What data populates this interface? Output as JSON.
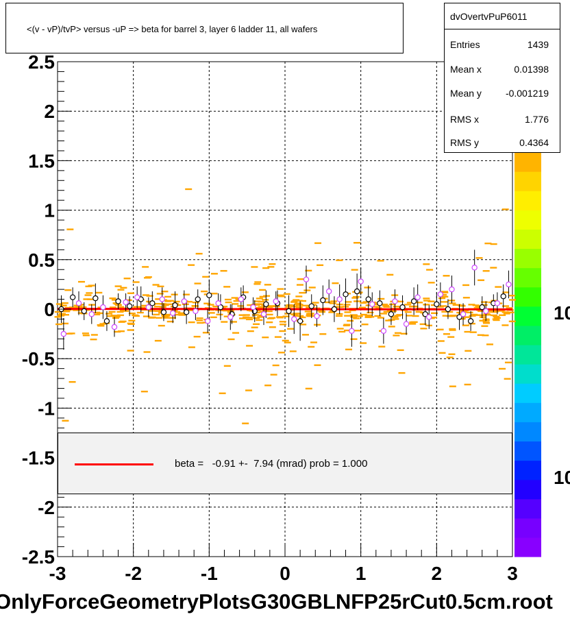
{
  "title": "<(v - vP)/tvP> versus  -uP => beta for barrel 3, layer 6 ladder 11, all wafers",
  "stats": {
    "name": "dvOvertvPuP6011",
    "rows": [
      {
        "label": "Entries",
        "value": "1439"
      },
      {
        "label": "Mean x",
        "value": "0.01398"
      },
      {
        "label": "Mean y",
        "value": "-0.001219"
      },
      {
        "label": "RMS x",
        "value": "1.776"
      },
      {
        "label": "RMS y",
        "value": "0.4364"
      }
    ]
  },
  "fit_legend": {
    "text": "beta =   -0.91 +-  7.94 (mrad) prob = 1.000",
    "line_color": "#ff0000"
  },
  "bottom_title": "OnlyForceGeometryPlotsG30GBLNFP25rCut0.5cm.root",
  "palette_labels": [
    "10",
    "10"
  ],
  "chart_data": {
    "type": "scatter",
    "title": "<(v - vP)/tvP> versus  -uP => beta for barrel 3, layer 6 ladder 11, all wafers",
    "xlim": [
      -3,
      3
    ],
    "ylim": [
      -2.5,
      2.5
    ],
    "x_ticks": [
      "-3",
      "-2",
      "-1",
      "0",
      "1",
      "2",
      "3"
    ],
    "y_ticks": [
      "-2.5",
      "-2",
      "-1.5",
      "-1",
      "-0.5",
      "0",
      "0.5",
      "1",
      "1.5",
      "2",
      "2.5"
    ],
    "grid": true,
    "fit": {
      "name": "beta",
      "slope_mrad": -0.91,
      "error_mrad": 7.94,
      "prob": 1.0,
      "color": "#ff0000"
    },
    "colors": {
      "histogram_bins": "#ffa500",
      "black_markers": "#000000",
      "magenta_markers": "#cc44ff"
    },
    "profile_black": [
      {
        "x": -2.95,
        "y": 0.0,
        "e": 0.14
      },
      {
        "x": -2.8,
        "y": 0.12,
        "e": 0.1
      },
      {
        "x": -2.65,
        "y": -0.02,
        "e": 0.09
      },
      {
        "x": -2.5,
        "y": 0.11,
        "e": 0.15
      },
      {
        "x": -2.35,
        "y": -0.12,
        "e": 0.1
      },
      {
        "x": -2.2,
        "y": 0.08,
        "e": 0.08
      },
      {
        "x": -2.05,
        "y": 0.03,
        "e": 0.1
      },
      {
        "x": -1.9,
        "y": 0.1,
        "e": 0.13
      },
      {
        "x": -1.75,
        "y": 0.06,
        "e": 0.12
      },
      {
        "x": -1.6,
        "y": -0.03,
        "e": 0.09
      },
      {
        "x": -1.45,
        "y": 0.04,
        "e": 0.14
      },
      {
        "x": -1.3,
        "y": -0.03,
        "e": 0.12
      },
      {
        "x": -1.15,
        "y": 0.1,
        "e": 0.1
      },
      {
        "x": -1.0,
        "y": 0.14,
        "e": 0.16
      },
      {
        "x": -0.85,
        "y": 0.02,
        "e": 0.13
      },
      {
        "x": -0.7,
        "y": -0.05,
        "e": 0.1
      },
      {
        "x": -0.55,
        "y": 0.12,
        "e": 0.12
      },
      {
        "x": -0.4,
        "y": -0.02,
        "e": 0.11
      },
      {
        "x": -0.25,
        "y": 0.05,
        "e": 0.14
      },
      {
        "x": -0.1,
        "y": 0.06,
        "e": 0.13
      },
      {
        "x": 0.05,
        "y": -0.02,
        "e": 0.16
      },
      {
        "x": 0.2,
        "y": -0.12,
        "e": 0.2
      },
      {
        "x": 0.35,
        "y": 0.03,
        "e": 0.12
      },
      {
        "x": 0.5,
        "y": 0.09,
        "e": 0.15
      },
      {
        "x": 0.65,
        "y": 0.0,
        "e": 0.13
      },
      {
        "x": 0.8,
        "y": 0.15,
        "e": 0.16
      },
      {
        "x": 0.95,
        "y": 0.18,
        "e": 0.18
      },
      {
        "x": 1.1,
        "y": 0.1,
        "e": 0.14
      },
      {
        "x": 1.25,
        "y": 0.06,
        "e": 0.13
      },
      {
        "x": 1.4,
        "y": -0.05,
        "e": 0.11
      },
      {
        "x": 1.55,
        "y": 0.02,
        "e": 0.12
      },
      {
        "x": 1.7,
        "y": 0.08,
        "e": 0.14
      },
      {
        "x": 1.85,
        "y": -0.05,
        "e": 0.11
      },
      {
        "x": 2.0,
        "y": 0.05,
        "e": 0.12
      },
      {
        "x": 2.15,
        "y": 0.0,
        "e": 0.1
      },
      {
        "x": 2.3,
        "y": -0.08,
        "e": 0.13
      },
      {
        "x": 2.45,
        "y": -0.12,
        "e": 0.1
      },
      {
        "x": 2.6,
        "y": 0.02,
        "e": 0.11
      },
      {
        "x": 2.75,
        "y": 0.06,
        "e": 0.09
      },
      {
        "x": 2.88,
        "y": 0.13,
        "e": 0.12
      }
    ],
    "profile_magenta": [
      {
        "x": -2.92,
        "y": -0.25,
        "e": 0.16
      },
      {
        "x": -2.72,
        "y": 0.06,
        "e": 0.12
      },
      {
        "x": -2.55,
        "y": -0.05,
        "e": 0.1
      },
      {
        "x": -2.4,
        "y": 0.02,
        "e": 0.12
      },
      {
        "x": -2.25,
        "y": -0.18,
        "e": 0.1
      },
      {
        "x": -2.1,
        "y": 0.07,
        "e": 0.09
      },
      {
        "x": -1.95,
        "y": 0.12,
        "e": 0.11
      },
      {
        "x": -1.8,
        "y": 0.02,
        "e": 0.1
      },
      {
        "x": -1.62,
        "y": 0.1,
        "e": 0.12
      },
      {
        "x": -1.48,
        "y": -0.04,
        "e": 0.1
      },
      {
        "x": -1.33,
        "y": 0.08,
        "e": 0.11
      },
      {
        "x": -1.18,
        "y": -0.02,
        "e": 0.09
      },
      {
        "x": -1.02,
        "y": -0.12,
        "e": 0.12
      },
      {
        "x": -0.88,
        "y": 0.06,
        "e": 0.1
      },
      {
        "x": -0.72,
        "y": -0.08,
        "e": 0.13
      },
      {
        "x": -0.58,
        "y": 0.1,
        "e": 0.12
      },
      {
        "x": -0.42,
        "y": 0.02,
        "e": 0.1
      },
      {
        "x": -0.28,
        "y": -0.05,
        "e": 0.11
      },
      {
        "x": -0.12,
        "y": 0.08,
        "e": 0.1
      },
      {
        "x": 0.12,
        "y": -0.1,
        "e": 0.15
      },
      {
        "x": 0.28,
        "y": 0.3,
        "e": 0.14
      },
      {
        "x": 0.42,
        "y": -0.07,
        "e": 0.11
      },
      {
        "x": 0.58,
        "y": 0.18,
        "e": 0.12
      },
      {
        "x": 0.72,
        "y": 0.1,
        "e": 0.15
      },
      {
        "x": 0.88,
        "y": -0.22,
        "e": 0.16
      },
      {
        "x": 1.0,
        "y": 0.28,
        "e": 0.14
      },
      {
        "x": 1.15,
        "y": 0.05,
        "e": 0.12
      },
      {
        "x": 1.3,
        "y": -0.22,
        "e": 0.13
      },
      {
        "x": 1.45,
        "y": 0.08,
        "e": 0.12
      },
      {
        "x": 1.6,
        "y": -0.15,
        "e": 0.11
      },
      {
        "x": 1.75,
        "y": 0.12,
        "e": 0.13
      },
      {
        "x": 1.9,
        "y": -0.08,
        "e": 0.12
      },
      {
        "x": 2.05,
        "y": 0.15,
        "e": 0.12
      },
      {
        "x": 2.2,
        "y": 0.2,
        "e": 0.14
      },
      {
        "x": 2.35,
        "y": -0.05,
        "e": 0.11
      },
      {
        "x": 2.5,
        "y": 0.42,
        "e": 0.18
      },
      {
        "x": 2.65,
        "y": -0.02,
        "e": 0.1
      },
      {
        "x": 2.8,
        "y": 0.06,
        "e": 0.11
      },
      {
        "x": 2.95,
        "y": 0.25,
        "e": 0.14
      }
    ]
  }
}
